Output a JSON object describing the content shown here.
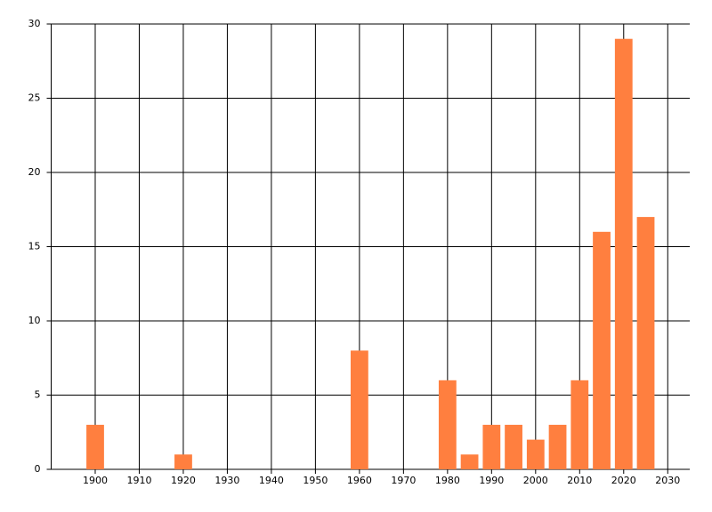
{
  "chart_data": {
    "type": "bar",
    "x": [
      1900,
      1920,
      1960,
      1980,
      1985,
      1990,
      1995,
      2000,
      2005,
      2010,
      2015,
      2020,
      2025
    ],
    "values": [
      3,
      1,
      8,
      6,
      1,
      3,
      3,
      2,
      3,
      6,
      16,
      29,
      17
    ],
    "color": "#ff7f3f",
    "xlim": [
      1890,
      2035
    ],
    "xticks": [
      1900,
      1910,
      1920,
      1930,
      1940,
      1950,
      1960,
      1970,
      1980,
      1990,
      2000,
      2010,
      2020,
      2030
    ],
    "ylim": [
      0,
      30
    ],
    "yticks": [
      0,
      5,
      10,
      15,
      20,
      25,
      30
    ],
    "grid": true
  }
}
